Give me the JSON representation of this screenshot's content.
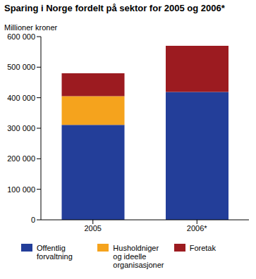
{
  "chart_data": {
    "type": "bar",
    "title": "Sparing i Norge fordelt på sektor for 2005 og 2006*",
    "y_label": "Millioner kroner",
    "categories": [
      "2005",
      "2006*"
    ],
    "series": [
      {
        "name": "Offentlig forvaltning",
        "color": "#233e99",
        "values": [
          311000,
          419000
        ]
      },
      {
        "name": "Husholdniger og ideelle organisasjoner",
        "color": "#f5a31d",
        "values": [
          94000,
          0
        ]
      },
      {
        "name": "Foretak",
        "color": "#9c1b20",
        "values": [
          75000,
          151000
        ]
      }
    ],
    "stacked": true,
    "ylim": [
      0,
      600000
    ],
    "yticks": [
      0,
      {
        "value": 100000,
        "label": "100 000"
      },
      {
        "value": 200000,
        "label": "200 000"
      },
      {
        "value": 300000,
        "label": "300 000"
      },
      {
        "value": 400000,
        "label": "400 000"
      },
      {
        "value": 500000,
        "label": "500 000"
      },
      {
        "value": 600000,
        "label": "600 000"
      }
    ],
    "grid": false,
    "legend": "bottom"
  }
}
